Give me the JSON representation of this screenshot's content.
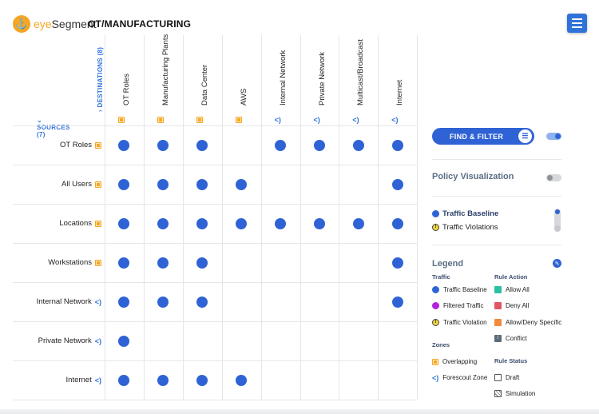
{
  "header": {
    "brand_eye": "eye",
    "brand_rest": "Segment",
    "title": "OT/MANUFACTURING"
  },
  "matrix": {
    "destinations_label": "DESTINATIONS (8)",
    "sources_label": "SOURCES (7)",
    "columns": [
      {
        "label": "OT Roles",
        "zone_type": "overlapping"
      },
      {
        "label": "Manufacturing Plants",
        "zone_type": "overlapping"
      },
      {
        "label": "Data Center",
        "zone_type": "overlapping"
      },
      {
        "label": "AWS",
        "zone_type": "overlapping"
      },
      {
        "label": "Internal Network",
        "zone_type": "forescout"
      },
      {
        "label": "Private Network",
        "zone_type": "forescout"
      },
      {
        "label": "Multicast/Broadcast",
        "zone_type": "forescout"
      },
      {
        "label": "Internet",
        "zone_type": "forescout"
      }
    ],
    "rows": [
      {
        "label": "OT Roles",
        "zone_type": "overlapping",
        "cells": [
          1,
          1,
          1,
          0,
          1,
          1,
          1,
          1
        ]
      },
      {
        "label": "All Users",
        "zone_type": "overlapping",
        "cells": [
          1,
          1,
          1,
          1,
          0,
          0,
          0,
          1
        ]
      },
      {
        "label": "Locations",
        "zone_type": "overlapping",
        "cells": [
          1,
          1,
          1,
          1,
          1,
          1,
          1,
          1
        ]
      },
      {
        "label": "Workstations",
        "zone_type": "overlapping",
        "cells": [
          1,
          1,
          1,
          0,
          0,
          0,
          0,
          1
        ]
      },
      {
        "label": "Internal Network",
        "zone_type": "forescout",
        "cells": [
          1,
          1,
          1,
          0,
          0,
          0,
          0,
          1
        ]
      },
      {
        "label": "Private Network",
        "zone_type": "forescout",
        "cells": [
          1,
          0,
          0,
          0,
          0,
          0,
          0,
          0
        ]
      },
      {
        "label": "Internet",
        "zone_type": "forescout",
        "cells": [
          1,
          1,
          1,
          1,
          0,
          0,
          0,
          0
        ]
      }
    ]
  },
  "panel": {
    "find_filter_label": "FIND & FILTER",
    "find_filter_toggle": "on",
    "policy_visualization_label": "Policy Visualization",
    "policy_visualization_toggle": "off",
    "traffic_baseline_label": "Traffic Baseline",
    "traffic_violations_label": "Traffic Violations"
  },
  "legend": {
    "title": "Legend",
    "traffic_heading": "Traffic",
    "rule_action_heading": "Rule Action",
    "traffic_items": [
      "Traffic Baseline",
      "Filtered Traffic",
      "Traffic Violation"
    ],
    "rule_action_items": [
      "Allow All",
      "Deny All",
      "Allow/Deny Specific",
      "Conflict"
    ],
    "zones_heading": "Zones",
    "rule_status_heading": "Rule Status",
    "zone_items": [
      "Overlapping",
      "Forescout Zone"
    ],
    "rule_status_items": [
      "Draft",
      "Simulation"
    ]
  },
  "colors": {
    "accent": "#2f63d5",
    "brand_orange": "#f5a623",
    "filtered_traffic": "#b224d9",
    "violation": "#f3d23a",
    "allow_all": "#2bbfa4",
    "deny_all": "#e05564",
    "allow_deny_specific": "#f28a3c"
  }
}
